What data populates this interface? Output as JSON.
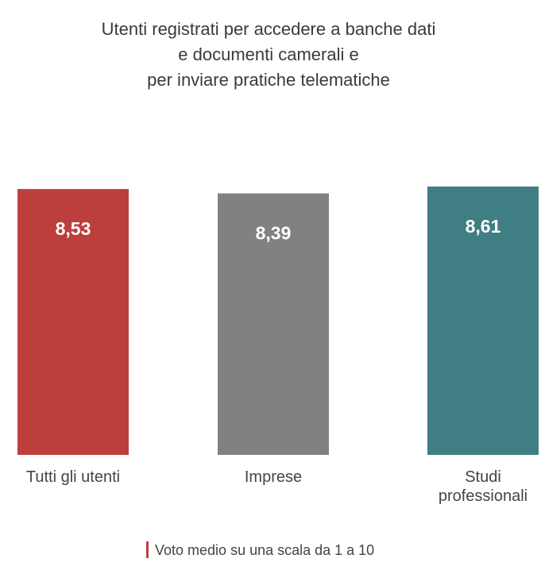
{
  "chart_data": {
    "type": "bar",
    "title_lines": [
      "Utenti registrati per accedere a banche dati",
      "e documenti camerali e",
      "per inviare pratiche telematiche"
    ],
    "categories": [
      [
        "Tutti gli utenti"
      ],
      [
        "Imprese"
      ],
      [
        "Studi",
        "professionali"
      ]
    ],
    "values": [
      8.53,
      8.39,
      8.61
    ],
    "value_labels": [
      "8,53",
      "8,39",
      "8,61"
    ],
    "colors": [
      "#bc3f3d",
      "#818181",
      "#3f7f84"
    ],
    "ylim": [
      0,
      10
    ],
    "grid": false,
    "legend": {
      "text": "Voto medio su una scala da 1 a 10",
      "marker_color": "#bc3f3d",
      "placement": "bottom-center"
    }
  }
}
